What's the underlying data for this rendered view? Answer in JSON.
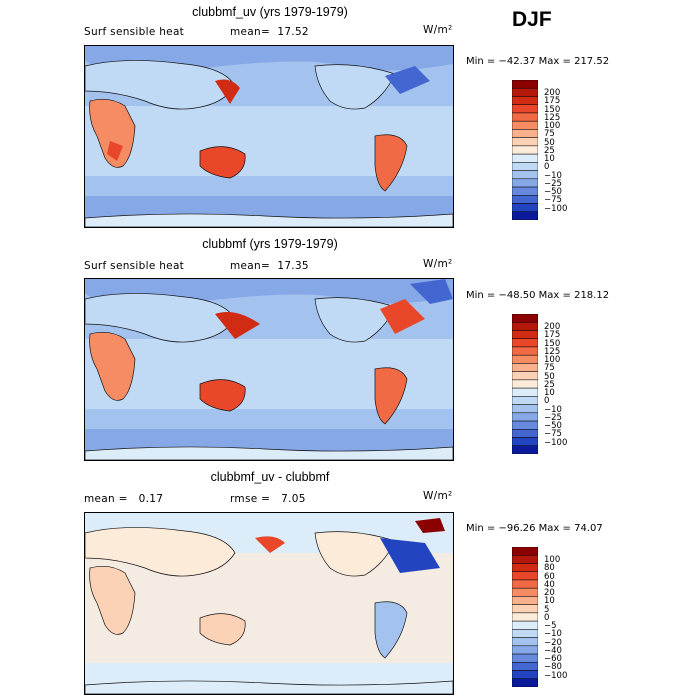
{
  "season": "DJF",
  "panels": [
    {
      "title": "clubbmf_uv (yrs 1979-1979)",
      "left_label": "Surf sensible heat",
      "stat1": "mean=  17.52",
      "stat2": "",
      "units": "W/m²",
      "minmax": "Min = −42.37 Max = 217.52",
      "colorbar_labels": [
        "200",
        "175",
        "150",
        "125",
        "100",
        "75",
        "50",
        "25",
        "10",
        "0",
        "−10",
        "−25",
        "−50",
        "−75",
        "−100"
      ],
      "colors": [
        "#8b0000",
        "#b3180b",
        "#d12b13",
        "#e8472a",
        "#f06a45",
        "#f68c64",
        "#f9b08c",
        "#fcd2b6",
        "#fdebd9",
        "#dcecf9",
        "#c0d9f4",
        "#a3c3ee",
        "#86a8e6",
        "#6688dd",
        "#4466d1",
        "#2244c0",
        "#0a1a9b"
      ]
    },
    {
      "title": "clubbmf (yrs 1979-1979)",
      "left_label": "Surf sensible heat",
      "stat1": "mean=  17.35",
      "stat2": "",
      "units": "W/m²",
      "minmax": "Min = −48.50 Max = 218.12",
      "colorbar_labels": [
        "200",
        "175",
        "150",
        "125",
        "100",
        "75",
        "50",
        "25",
        "10",
        "0",
        "−10",
        "−25",
        "−50",
        "−75",
        "−100"
      ],
      "colors": [
        "#8b0000",
        "#b3180b",
        "#d12b13",
        "#e8472a",
        "#f06a45",
        "#f68c64",
        "#f9b08c",
        "#fcd2b6",
        "#fdebd9",
        "#dcecf9",
        "#c0d9f4",
        "#a3c3ee",
        "#86a8e6",
        "#6688dd",
        "#4466d1",
        "#2244c0",
        "#0a1a9b"
      ]
    },
    {
      "title": "clubbmf_uv - clubbmf",
      "left_label": "mean =   0.17",
      "stat1": "rmse =   7.05",
      "stat2": "",
      "units": "W/m²",
      "minmax": "Min = −96.26 Max =  74.07",
      "colorbar_labels": [
        "100",
        "80",
        "60",
        "40",
        "20",
        "10",
        "5",
        "0",
        "−5",
        "−10",
        "−20",
        "−40",
        "−60",
        "−80",
        "−100"
      ],
      "colors": [
        "#8b0000",
        "#b3180b",
        "#d12b13",
        "#e8472a",
        "#f06a45",
        "#f68c64",
        "#f9b08c",
        "#fcd2b6",
        "#fdebd9",
        "#dcecf9",
        "#c0d9f4",
        "#a3c3ee",
        "#86a8e6",
        "#6688dd",
        "#4466d1",
        "#2244c0",
        "#0a1a9b"
      ]
    }
  ]
}
